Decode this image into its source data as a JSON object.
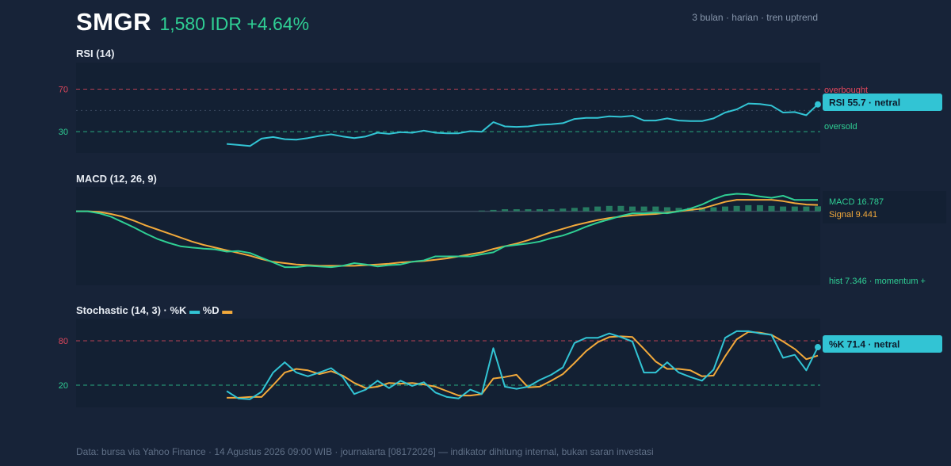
{
  "header": {
    "ticker": "SMGR",
    "price": "1,580 IDR +4.64%",
    "meta": "3 bulan · harian · tren uptrend"
  },
  "rsi": {
    "title": "RSI (14)",
    "overbought_label": "overbought",
    "oversold_label": "oversold",
    "callout": "RSI 55.7 · netral"
  },
  "macd": {
    "title": "MACD (12, 26, 9)",
    "macd_label": "MACD 16.787",
    "signal_label": "Signal 9.441",
    "hist_label": "hist 7.346 · momentum +"
  },
  "stoch": {
    "title": "Stochastic (14, 3) · %K",
    "legend_d": "%D",
    "callout": "%K 71.4 · netral"
  },
  "footer": "Data: bursa via Yahoo Finance · 14 Agustus 2026 09:00 WIB · journalarta [08172026] — indikator dihitung internal, bukan saran investasi",
  "colors": {
    "background": "#172338",
    "panel": "#132033",
    "accent_cyan": "#32c4d4",
    "accent_green": "#2fcf94",
    "signal_orange": "#f2a93b",
    "overbought_red": "#e0475c",
    "oversold_green": "#2fcf94"
  },
  "chart_data": [
    {
      "type": "line",
      "name": "RSI (14)",
      "ylim": [
        10,
        95
      ],
      "reference_lines": [
        70,
        30,
        50
      ],
      "yticks": [
        70,
        30
      ],
      "series": [
        {
          "name": "RSI",
          "x": [
            13,
            14,
            15,
            16,
            17,
            18,
            19,
            20,
            21,
            22,
            23,
            24,
            25,
            26,
            27,
            28,
            29,
            30,
            31,
            32,
            33,
            34,
            35,
            36,
            37,
            38,
            39,
            40,
            41,
            42,
            43,
            44,
            45,
            46,
            47,
            48,
            49,
            50,
            51,
            52,
            53,
            54,
            55,
            56,
            57,
            58,
            59,
            60,
            61,
            62,
            63,
            64
          ],
          "values": [
            18.5,
            17.5,
            16.5,
            23.5,
            25,
            23,
            22.5,
            24,
            26,
            27.5,
            25.5,
            24,
            25.5,
            29,
            28,
            29.5,
            29,
            31,
            29,
            28.5,
            28.5,
            30.5,
            30,
            39,
            35,
            34.5,
            35,
            36.5,
            37,
            38,
            42,
            43,
            43,
            44.5,
            44,
            45,
            40.5,
            40.5,
            42.5,
            40.5,
            40,
            40,
            42.5,
            48,
            51,
            56.5,
            56,
            54.5,
            48,
            48.5,
            45.5,
            55.7
          ]
        }
      ]
    },
    {
      "type": "line",
      "name": "MACD (12, 26, 9)",
      "ylim": [
        -110,
        36
      ],
      "series": [
        {
          "name": "MACD",
          "x": [
            0,
            1,
            2,
            3,
            4,
            5,
            6,
            7,
            8,
            9,
            10,
            11,
            12,
            13,
            14,
            15,
            16,
            17,
            18,
            19,
            20,
            21,
            22,
            23,
            24,
            25,
            26,
            27,
            28,
            29,
            30,
            31,
            32,
            33,
            34,
            35,
            36,
            37,
            38,
            39,
            40,
            41,
            42,
            43,
            44,
            45,
            46,
            47,
            48,
            49,
            50,
            51,
            52,
            53,
            54,
            55,
            56,
            57,
            58,
            59,
            60,
            61,
            62,
            63,
            64
          ],
          "values": [
            0,
            0,
            -3,
            -8,
            -16,
            -24,
            -33,
            -41,
            -47,
            -52,
            -54,
            -55.5,
            -56.5,
            -60,
            -59,
            -62,
            -69,
            -76,
            -83,
            -83,
            -81,
            -82,
            -83,
            -81,
            -77,
            -79,
            -82,
            -80,
            -79,
            -75,
            -73,
            -67,
            -67,
            -67,
            -67,
            -64,
            -61,
            -52,
            -50,
            -48,
            -45,
            -40,
            -36,
            -30,
            -23,
            -17,
            -12,
            -7,
            -3,
            -3,
            -2,
            -3,
            0,
            4,
            10,
            18,
            24,
            26,
            25,
            22,
            20,
            23,
            16.787,
            16.787,
            16.787
          ]
        },
        {
          "name": "Signal",
          "x": [
            0,
            1,
            2,
            3,
            4,
            5,
            6,
            7,
            8,
            9,
            10,
            11,
            12,
            13,
            14,
            15,
            16,
            17,
            18,
            19,
            20,
            21,
            22,
            23,
            24,
            25,
            26,
            27,
            28,
            29,
            30,
            31,
            32,
            33,
            34,
            35,
            36,
            37,
            38,
            39,
            40,
            41,
            42,
            43,
            44,
            45,
            46,
            47,
            48,
            49,
            50,
            51,
            52,
            53,
            54,
            55,
            56,
            57,
            58,
            59,
            60,
            61,
            62,
            63,
            64
          ],
          "values": [
            0,
            0,
            -1,
            -4,
            -8,
            -14,
            -21,
            -27,
            -33,
            -39,
            -45,
            -50,
            -54,
            -58,
            -62,
            -66,
            -71,
            -75,
            -77,
            -79,
            -80,
            -81,
            -81,
            -81,
            -81,
            -80,
            -79,
            -78,
            -76,
            -75,
            -74,
            -72,
            -70,
            -67,
            -64,
            -61,
            -56,
            -52,
            -48,
            -43,
            -37,
            -31,
            -26,
            -21,
            -17,
            -13,
            -10,
            -8,
            -6,
            -5,
            -4,
            -2,
            0,
            2,
            4,
            9,
            14,
            17,
            17,
            17,
            17,
            15,
            12,
            10,
            9.441
          ]
        },
        {
          "name": "Histogram",
          "x": [
            35,
            36,
            37,
            38,
            39,
            40,
            41,
            42,
            43,
            44,
            45,
            46,
            47,
            48,
            49,
            50,
            51,
            52,
            53,
            54,
            55,
            56,
            57,
            58,
            59,
            60,
            61,
            62,
            63,
            64
          ],
          "values": [
            1,
            2,
            3,
            3,
            3,
            3,
            3,
            4,
            5,
            6,
            7,
            8,
            8,
            7,
            7,
            7,
            6,
            5,
            5,
            6,
            6,
            7,
            8,
            9,
            9,
            8,
            7,
            7,
            7,
            7.346
          ]
        }
      ]
    },
    {
      "type": "line",
      "name": "Stochastic (14, 3)",
      "ylim": [
        0,
        100
      ],
      "reference_lines": [
        80,
        20
      ],
      "yticks": [
        80,
        20
      ],
      "series": [
        {
          "name": "%K",
          "x": [
            13,
            14,
            15,
            16,
            17,
            18,
            19,
            20,
            21,
            22,
            23,
            24,
            25,
            26,
            27,
            28,
            29,
            30,
            31,
            32,
            33,
            34,
            35,
            36,
            37,
            38,
            39,
            40,
            41,
            42,
            43,
            44,
            45,
            46,
            47,
            48,
            49,
            50,
            51,
            52,
            53,
            54,
            55,
            56,
            57,
            58,
            59,
            60,
            61,
            62,
            63,
            64
          ],
          "values": [
            12,
            2,
            1,
            11,
            37,
            51,
            37,
            32,
            37,
            43,
            31,
            8,
            14,
            26,
            16,
            26,
            19,
            24,
            10,
            4,
            2,
            14,
            8,
            70,
            18,
            15,
            18,
            27,
            34,
            44,
            77,
            84,
            84,
            90,
            85,
            79,
            37,
            37,
            51,
            37,
            31,
            26,
            41,
            84,
            93,
            93,
            90,
            88,
            57,
            61,
            40,
            71.4
          ]
        },
        {
          "name": "%D",
          "x": [
            13,
            14,
            15,
            16,
            17,
            18,
            19,
            20,
            21,
            22,
            23,
            24,
            25,
            26,
            27,
            28,
            29,
            30,
            31,
            32,
            33,
            34,
            35,
            36,
            37,
            38,
            39,
            40,
            41,
            42,
            43,
            44,
            45,
            46,
            47,
            48,
            49,
            50,
            51,
            52,
            53,
            54,
            55,
            56,
            57,
            58,
            59,
            60,
            61,
            62,
            63,
            64
          ],
          "values": [
            3,
            3,
            4,
            4,
            20,
            37,
            42,
            40,
            35,
            39,
            33,
            23,
            16,
            18,
            23,
            22,
            23,
            21,
            18,
            12,
            6,
            6,
            8,
            29,
            31,
            34,
            17,
            18,
            26,
            35,
            50,
            66,
            78,
            85,
            86,
            85,
            69,
            52,
            42,
            42,
            40,
            32,
            33,
            59,
            82,
            92,
            91,
            88,
            79,
            69,
            55,
            60
          ]
        }
      ]
    }
  ]
}
